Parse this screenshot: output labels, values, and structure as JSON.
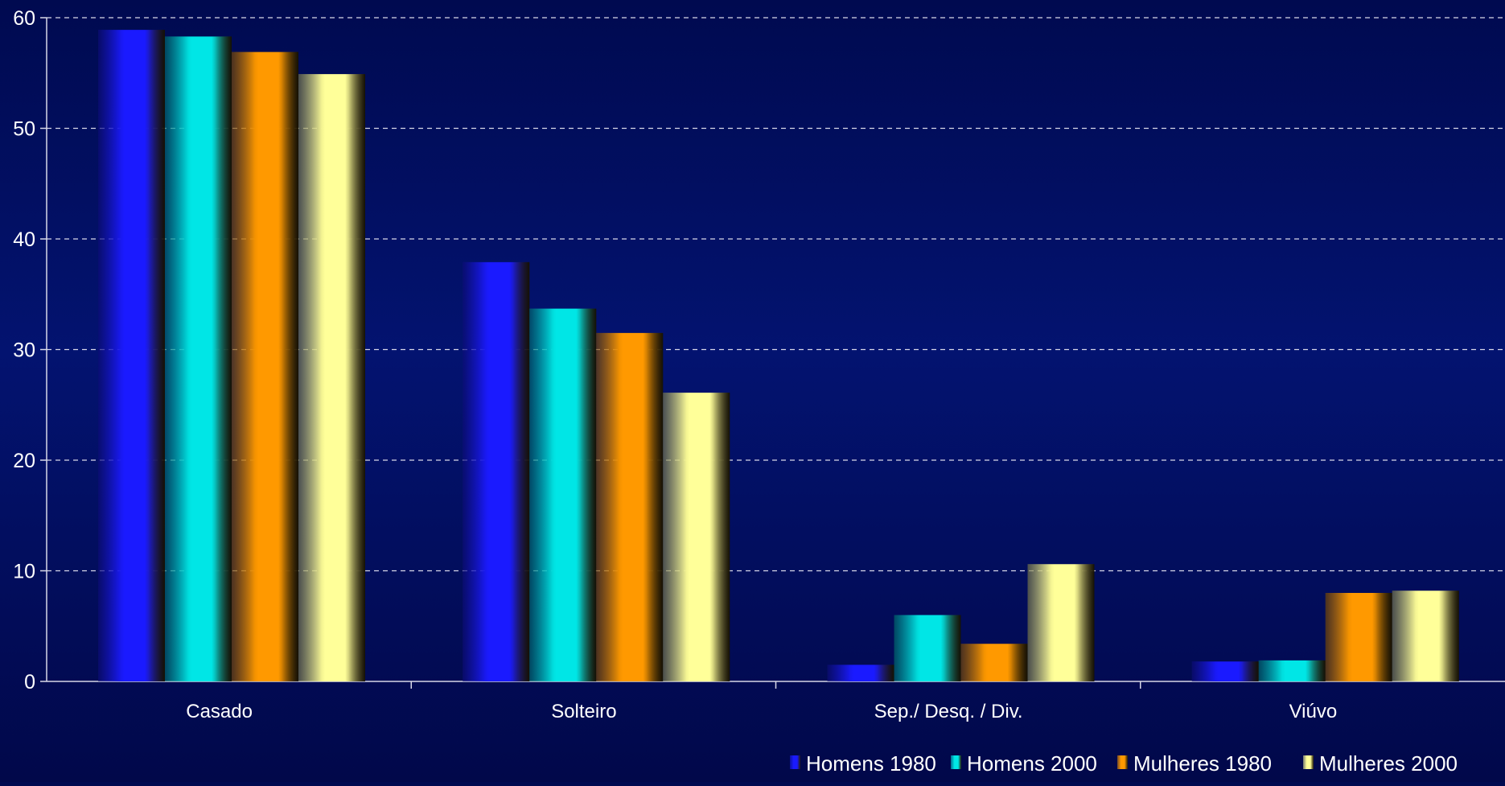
{
  "chart_data": {
    "type": "bar",
    "title": "",
    "xlabel": "",
    "ylabel": "",
    "ylim": [
      0,
      60
    ],
    "yticks": [
      0,
      10,
      20,
      30,
      40,
      50,
      60
    ],
    "grid": true,
    "legend_position": "bottom-right",
    "categories": [
      "Casado",
      "Solteiro",
      "Sep./ Desq. / Div.",
      "Viúvo"
    ],
    "series": [
      {
        "name": "Homens 1980",
        "color": "#1a1aff",
        "values": [
          58.9,
          37.9,
          1.5,
          1.8
        ]
      },
      {
        "name": "Homens 2000",
        "color": "#00e6e6",
        "values": [
          58.3,
          33.7,
          6.0,
          1.9
        ]
      },
      {
        "name": "Mulheres 1980",
        "color": "#ff9900",
        "values": [
          56.9,
          31.5,
          3.4,
          8.0
        ]
      },
      {
        "name": "Mulheres 2000",
        "color": "#ffff99",
        "values": [
          54.9,
          26.1,
          10.6,
          8.2
        ]
      }
    ]
  }
}
